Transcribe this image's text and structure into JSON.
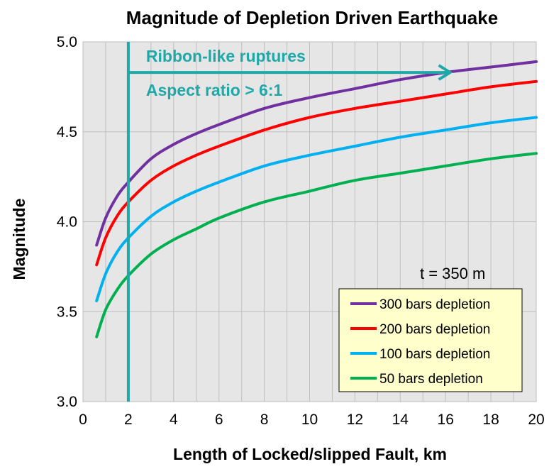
{
  "chart_data": {
    "type": "line",
    "title": "Magnitude of Depletion Driven Earthquake",
    "xlabel": "Length of Locked/slipped Fault, km",
    "ylabel": "Magnitude",
    "xlim": [
      0,
      20
    ],
    "ylim": [
      3.0,
      5.0
    ],
    "x_ticks": [
      "0",
      "2",
      "4",
      "6",
      "8",
      "10",
      "12",
      "14",
      "16",
      "18",
      "20"
    ],
    "y_ticks": [
      "3.0",
      "3.5",
      "4.0",
      "4.5",
      "5.0"
    ],
    "grid": true,
    "legend_position": "bottom-right",
    "x": [
      0.6,
      1,
      1.5,
      2,
      3,
      4,
      5,
      6,
      8,
      10,
      12,
      14,
      16,
      18,
      20
    ],
    "series": [
      {
        "name": "300 bars depletion",
        "color": "#7030A0",
        "values": [
          3.87,
          4.02,
          4.14,
          4.22,
          4.35,
          4.43,
          4.49,
          4.54,
          4.63,
          4.69,
          4.74,
          4.79,
          4.83,
          4.86,
          4.89
        ]
      },
      {
        "name": "200 bars depletion",
        "color": "#FF0000",
        "values": [
          3.76,
          3.91,
          4.03,
          4.11,
          4.23,
          4.31,
          4.37,
          4.42,
          4.51,
          4.58,
          4.63,
          4.67,
          4.71,
          4.75,
          4.78
        ]
      },
      {
        "name": "100 bars depletion",
        "color": "#00B0F0",
        "values": [
          3.56,
          3.71,
          3.83,
          3.91,
          4.03,
          4.11,
          4.17,
          4.22,
          4.31,
          4.37,
          4.42,
          4.47,
          4.51,
          4.55,
          4.58
        ]
      },
      {
        "name": "50 bars depletion",
        "color": "#00B050",
        "values": [
          3.36,
          3.51,
          3.62,
          3.7,
          3.82,
          3.9,
          3.96,
          4.02,
          4.11,
          4.17,
          4.23,
          4.27,
          4.31,
          4.35,
          4.38
        ]
      }
    ],
    "annotations": {
      "vertical_line_x": 2,
      "arrow_y": 4.83,
      "arrow_x_end": 16.2,
      "line1": "Ribbon-like ruptures",
      "line2": "Aspect ratio > 6:1",
      "color": "#1FA8A8",
      "note": "t = 350 m"
    },
    "legend_bg": "#FFFFCC",
    "grid_color": "#BFBFBF",
    "plot_bg": "#E6E6E6"
  }
}
